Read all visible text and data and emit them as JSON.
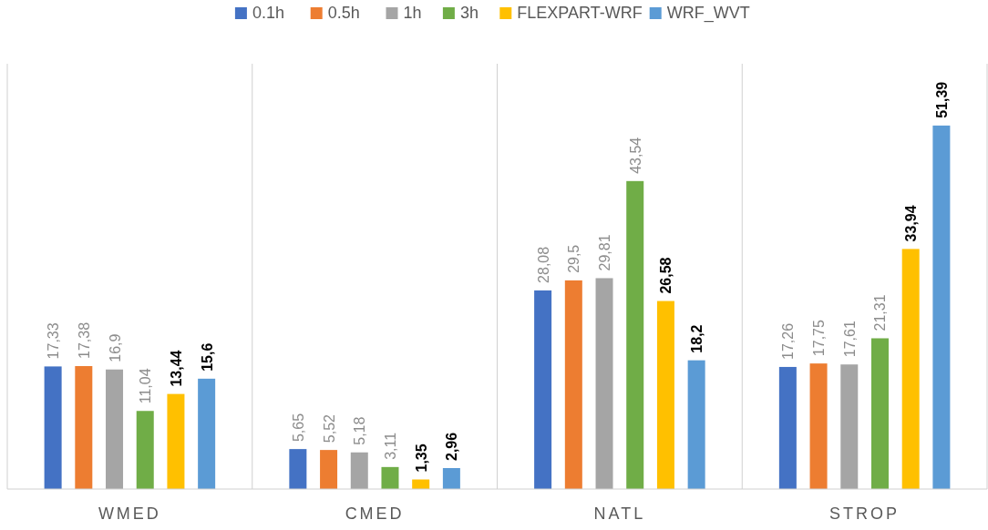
{
  "chart_data": {
    "type": "bar",
    "categories": [
      "WMED",
      "CMED",
      "NATL",
      "STROP"
    ],
    "legend": "top",
    "grid": "x",
    "series": [
      {
        "name": "0.1h",
        "color": "#4472c4",
        "values": [
          17.33,
          5.65,
          28.08,
          17.26
        ],
        "value_labels": [
          "17,33",
          "5,65",
          "28,08",
          "17,26"
        ]
      },
      {
        "name": "0.5h",
        "color": "#ed7d31",
        "values": [
          17.38,
          5.52,
          29.5,
          17.75
        ],
        "value_labels": [
          "17,38",
          "5,52",
          "29,5",
          "17,75"
        ]
      },
      {
        "name": "1h",
        "color": "#a5a5a5",
        "values": [
          16.9,
          5.18,
          29.81,
          17.61
        ],
        "value_labels": [
          "16,9",
          "5,18",
          "29,81",
          "17,61"
        ]
      },
      {
        "name": "3h",
        "color": "#70ad47",
        "values": [
          11.04,
          3.11,
          43.54,
          21.31
        ],
        "value_labels": [
          "11,04",
          "3,11",
          "43,54",
          "21,31"
        ]
      },
      {
        "name": "FLEXPART-WRF",
        "color": "#ffc000",
        "values": [
          13.44,
          1.35,
          26.58,
          33.94
        ],
        "value_labels": [
          "13,44",
          "1,35",
          "26,58",
          "33,94"
        ]
      },
      {
        "name": "WRF_WVT",
        "color": "#5b9bd5",
        "values": [
          15.6,
          2.96,
          18.2,
          51.39
        ],
        "value_labels": [
          "15,6",
          "2,96",
          "18,2",
          "51,39"
        ]
      }
    ]
  }
}
